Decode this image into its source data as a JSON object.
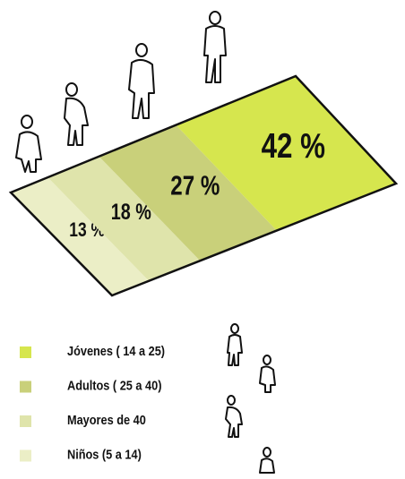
{
  "chart_data": {
    "type": "parallelogram",
    "categories": [
      "Jóvenes ( 14 a 25)",
      "Adultos  ( 25 a 40)",
      "Mayores de 40",
      "Niños (5 a 14)"
    ],
    "values": [
      42,
      27,
      18,
      13
    ],
    "value_labels": [
      "42 %",
      "27 %",
      "18 %",
      "13 %"
    ],
    "colors": [
      "#d6e64e",
      "#c9d07a",
      "#dfe4ab",
      "#ebeec6"
    ]
  }
}
